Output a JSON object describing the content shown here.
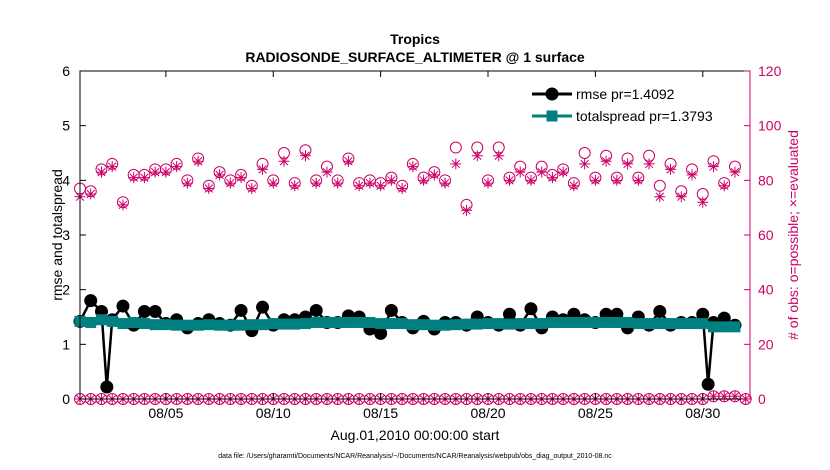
{
  "chart_data": {
    "type": "line",
    "title": "Tropics",
    "subtitle": "RADIOSONDE_SURFACE_ALTIMETER @ 1 surface",
    "xlabel": "Aug.01,2010 00:00:00 start",
    "ylabel": "rmse and totalspread",
    "y2label": "# of obs: o=possible; ×=evaluated",
    "xlim": [
      1,
      32.2
    ],
    "ylim": [
      0,
      6
    ],
    "y2lim": [
      0,
      120
    ],
    "x_ticks": [
      {
        "value": 5,
        "label": "08/05"
      },
      {
        "value": 10,
        "label": "08/10"
      },
      {
        "value": 15,
        "label": "08/15"
      },
      {
        "value": 20,
        "label": "08/20"
      },
      {
        "value": 25,
        "label": "08/25"
      },
      {
        "value": 30,
        "label": "08/30"
      }
    ],
    "y_ticks": [
      0,
      1,
      2,
      3,
      4,
      5,
      6
    ],
    "y2_ticks": [
      0,
      20,
      40,
      60,
      80,
      100,
      120
    ],
    "left_color": "#000000",
    "right_color": "#cc0066",
    "series": [
      {
        "name": "rmse pr=1.4092",
        "color": "#000000",
        "marker": "circle",
        "axis": "left",
        "x": [
          1.0,
          1.5,
          2.0,
          2.25,
          2.5,
          3.0,
          3.5,
          4.0,
          4.5,
          5.0,
          5.5,
          6.0,
          6.5,
          7.0,
          7.5,
          8.0,
          8.5,
          9.0,
          9.5,
          10.0,
          10.5,
          11.0,
          11.5,
          12.0,
          12.5,
          13.0,
          13.5,
          14.0,
          14.5,
          15.0,
          15.5,
          16.0,
          16.5,
          17.0,
          17.5,
          18.0,
          18.5,
          19.0,
          19.5,
          20.0,
          20.5,
          21.0,
          21.5,
          22.0,
          22.5,
          23.0,
          23.5,
          24.0,
          24.5,
          25.0,
          25.5,
          26.0,
          26.5,
          27.0,
          27.5,
          28.0,
          28.5,
          29.0,
          29.5,
          30.0,
          30.25,
          30.5,
          31.0,
          31.5
        ],
        "values": [
          1.42,
          1.8,
          1.6,
          0.22,
          1.45,
          1.7,
          1.35,
          1.6,
          1.6,
          1.38,
          1.45,
          1.3,
          1.38,
          1.45,
          1.38,
          1.35,
          1.62,
          1.25,
          1.68,
          1.35,
          1.45,
          1.45,
          1.5,
          1.62,
          1.4,
          1.4,
          1.52,
          1.5,
          1.28,
          1.2,
          1.62,
          1.4,
          1.3,
          1.42,
          1.28,
          1.4,
          1.4,
          1.35,
          1.5,
          1.4,
          1.35,
          1.55,
          1.35,
          1.65,
          1.3,
          1.5,
          1.45,
          1.55,
          1.45,
          1.4,
          1.55,
          1.55,
          1.3,
          1.5,
          1.35,
          1.6,
          1.35,
          1.4,
          1.4,
          1.55,
          0.27,
          1.4,
          1.48,
          1.35
        ]
      },
      {
        "name": "totalspread pr=1.3793",
        "color": "#008080",
        "marker": "square",
        "axis": "left",
        "x": [
          1.0,
          1.5,
          2.0,
          2.5,
          3.0,
          3.5,
          4.0,
          4.5,
          5.0,
          5.5,
          6.0,
          6.5,
          7.0,
          7.5,
          8.0,
          8.5,
          9.0,
          9.5,
          10.0,
          10.5,
          11.0,
          11.5,
          12.0,
          12.5,
          13.0,
          13.5,
          14.0,
          14.5,
          15.0,
          15.5,
          16.0,
          16.5,
          17.0,
          17.5,
          18.0,
          18.5,
          19.0,
          19.5,
          20.0,
          20.5,
          21.0,
          21.5,
          22.0,
          22.5,
          23.0,
          23.5,
          24.0,
          24.5,
          25.0,
          25.5,
          26.0,
          26.5,
          27.0,
          27.5,
          28.0,
          28.5,
          29.0,
          29.5,
          30.0,
          30.5,
          31.0,
          31.5
        ],
        "values": [
          1.42,
          1.4,
          1.45,
          1.42,
          1.38,
          1.4,
          1.38,
          1.36,
          1.36,
          1.35,
          1.35,
          1.35,
          1.36,
          1.35,
          1.35,
          1.35,
          1.36,
          1.36,
          1.38,
          1.37,
          1.37,
          1.38,
          1.4,
          1.4,
          1.4,
          1.4,
          1.4,
          1.4,
          1.38,
          1.38,
          1.38,
          1.36,
          1.36,
          1.35,
          1.35,
          1.36,
          1.37,
          1.37,
          1.38,
          1.38,
          1.37,
          1.38,
          1.38,
          1.38,
          1.4,
          1.4,
          1.4,
          1.4,
          1.4,
          1.4,
          1.4,
          1.4,
          1.38,
          1.38,
          1.38,
          1.38,
          1.38,
          1.38,
          1.38,
          1.32,
          1.32,
          1.32
        ]
      },
      {
        "name": "possible",
        "color": "#cc0066",
        "marker": "open-circle",
        "axis": "right",
        "x": [
          1.0,
          1.5,
          2.0,
          2.5,
          3.0,
          3.5,
          4.0,
          4.5,
          5.0,
          5.5,
          6.0,
          6.5,
          7.0,
          7.5,
          8.0,
          8.5,
          9.0,
          9.5,
          10.0,
          10.5,
          11.0,
          11.5,
          12.0,
          12.5,
          13.0,
          13.5,
          14.0,
          14.5,
          15.0,
          15.5,
          16.0,
          16.5,
          17.0,
          17.5,
          18.0,
          18.5,
          19.0,
          19.5,
          20.0,
          20.5,
          21.0,
          21.5,
          22.0,
          22.5,
          23.0,
          23.5,
          24.0,
          24.5,
          25.0,
          25.5,
          26.0,
          26.5,
          27.0,
          27.5,
          28.0,
          28.5,
          29.0,
          29.5,
          30.0,
          30.5,
          31.0,
          31.5
        ],
        "values": [
          77,
          76,
          84,
          86,
          72,
          82,
          82,
          84,
          84,
          86,
          80,
          88,
          78,
          83,
          80,
          82,
          78,
          86,
          80,
          90,
          79,
          91,
          80,
          85,
          80,
          88,
          79,
          80,
          79,
          81,
          78,
          86,
          81,
          83,
          80,
          92,
          71,
          92,
          80,
          92,
          81,
          85,
          81,
          85,
          82,
          84,
          79,
          90,
          81,
          89,
          81,
          88,
          81,
          89,
          78,
          86,
          76,
          84,
          75,
          87,
          79,
          85
        ]
      },
      {
        "name": "evaluated",
        "color": "#cc0066",
        "marker": "star",
        "axis": "right",
        "x": [
          1.0,
          1.5,
          2.0,
          2.5,
          3.0,
          3.5,
          4.0,
          4.5,
          5.0,
          5.5,
          6.0,
          6.5,
          7.0,
          7.5,
          8.0,
          8.5,
          9.0,
          9.5,
          10.0,
          10.5,
          11.0,
          11.5,
          12.0,
          12.5,
          13.0,
          13.5,
          14.0,
          14.5,
          15.0,
          15.5,
          16.0,
          16.5,
          17.0,
          17.5,
          18.0,
          18.5,
          19.0,
          19.5,
          20.0,
          20.5,
          21.0,
          21.5,
          22.0,
          22.5,
          23.0,
          23.5,
          24.0,
          24.5,
          25.0,
          25.5,
          26.0,
          26.5,
          27.0,
          27.5,
          28.0,
          28.5,
          29.0,
          29.5,
          30.0,
          30.5,
          31.0,
          31.5
        ],
        "values": [
          74,
          75,
          83,
          85,
          71,
          81,
          81,
          83,
          83,
          85,
          79,
          87,
          77,
          82,
          79,
          81,
          77,
          84,
          79,
          87,
          78,
          89,
          79,
          83,
          79,
          87,
          78,
          79,
          78,
          80,
          77,
          85,
          80,
          82,
          79,
          86,
          69,
          89,
          79,
          89,
          80,
          83,
          80,
          83,
          81,
          83,
          78,
          86,
          80,
          87,
          80,
          86,
          80,
          86,
          74,
          84,
          74,
          82,
          72,
          85,
          78,
          83
        ]
      },
      {
        "name": "possible-zero",
        "color": "#cc0066",
        "marker": "open-circle",
        "axis": "right",
        "x": [
          1.0,
          1.5,
          2.0,
          2.5,
          3.0,
          3.5,
          4.0,
          4.5,
          5.0,
          5.5,
          6.0,
          6.5,
          7.0,
          7.5,
          8.0,
          8.5,
          9.0,
          9.5,
          10.0,
          10.5,
          11.0,
          11.5,
          12.0,
          12.5,
          13.0,
          13.5,
          14.0,
          14.5,
          15.0,
          15.5,
          16.0,
          16.5,
          17.0,
          17.5,
          18.0,
          18.5,
          19.0,
          19.5,
          20.0,
          20.5,
          21.0,
          21.5,
          22.0,
          22.5,
          23.0,
          23.5,
          24.0,
          24.5,
          25.0,
          25.5,
          26.0,
          26.5,
          27.0,
          27.5,
          28.0,
          28.5,
          29.0,
          29.5,
          30.0,
          30.5,
          31.0,
          31.5,
          32.0
        ],
        "values": [
          0,
          0,
          0,
          0,
          0,
          0,
          0,
          0,
          0,
          0,
          0,
          0,
          0,
          0,
          0,
          0,
          0,
          0,
          0,
          0,
          0,
          0,
          0,
          0,
          0,
          0,
          0,
          0,
          0,
          0,
          0,
          0,
          0,
          0,
          0,
          0,
          0,
          0,
          0,
          0,
          0,
          0,
          0,
          0,
          0,
          0,
          0,
          0,
          0,
          0,
          0,
          0,
          0,
          0,
          0,
          0,
          0,
          0,
          0,
          1,
          1,
          1,
          0
        ]
      }
    ],
    "legend": [
      {
        "label": "rmse pr=1.4092",
        "color": "#000000",
        "marker": "circle"
      },
      {
        "label": "totalspread pr=1.3793",
        "color": "#008080",
        "marker": "square"
      }
    ],
    "legend_position": "top-right"
  },
  "footnote": "data file: /Users/gharamti/Documents/NCAR/Reanalysis/~/Documents/NCAR/Reanalysis/webpub/obs_diag_output_2010-08.nc"
}
